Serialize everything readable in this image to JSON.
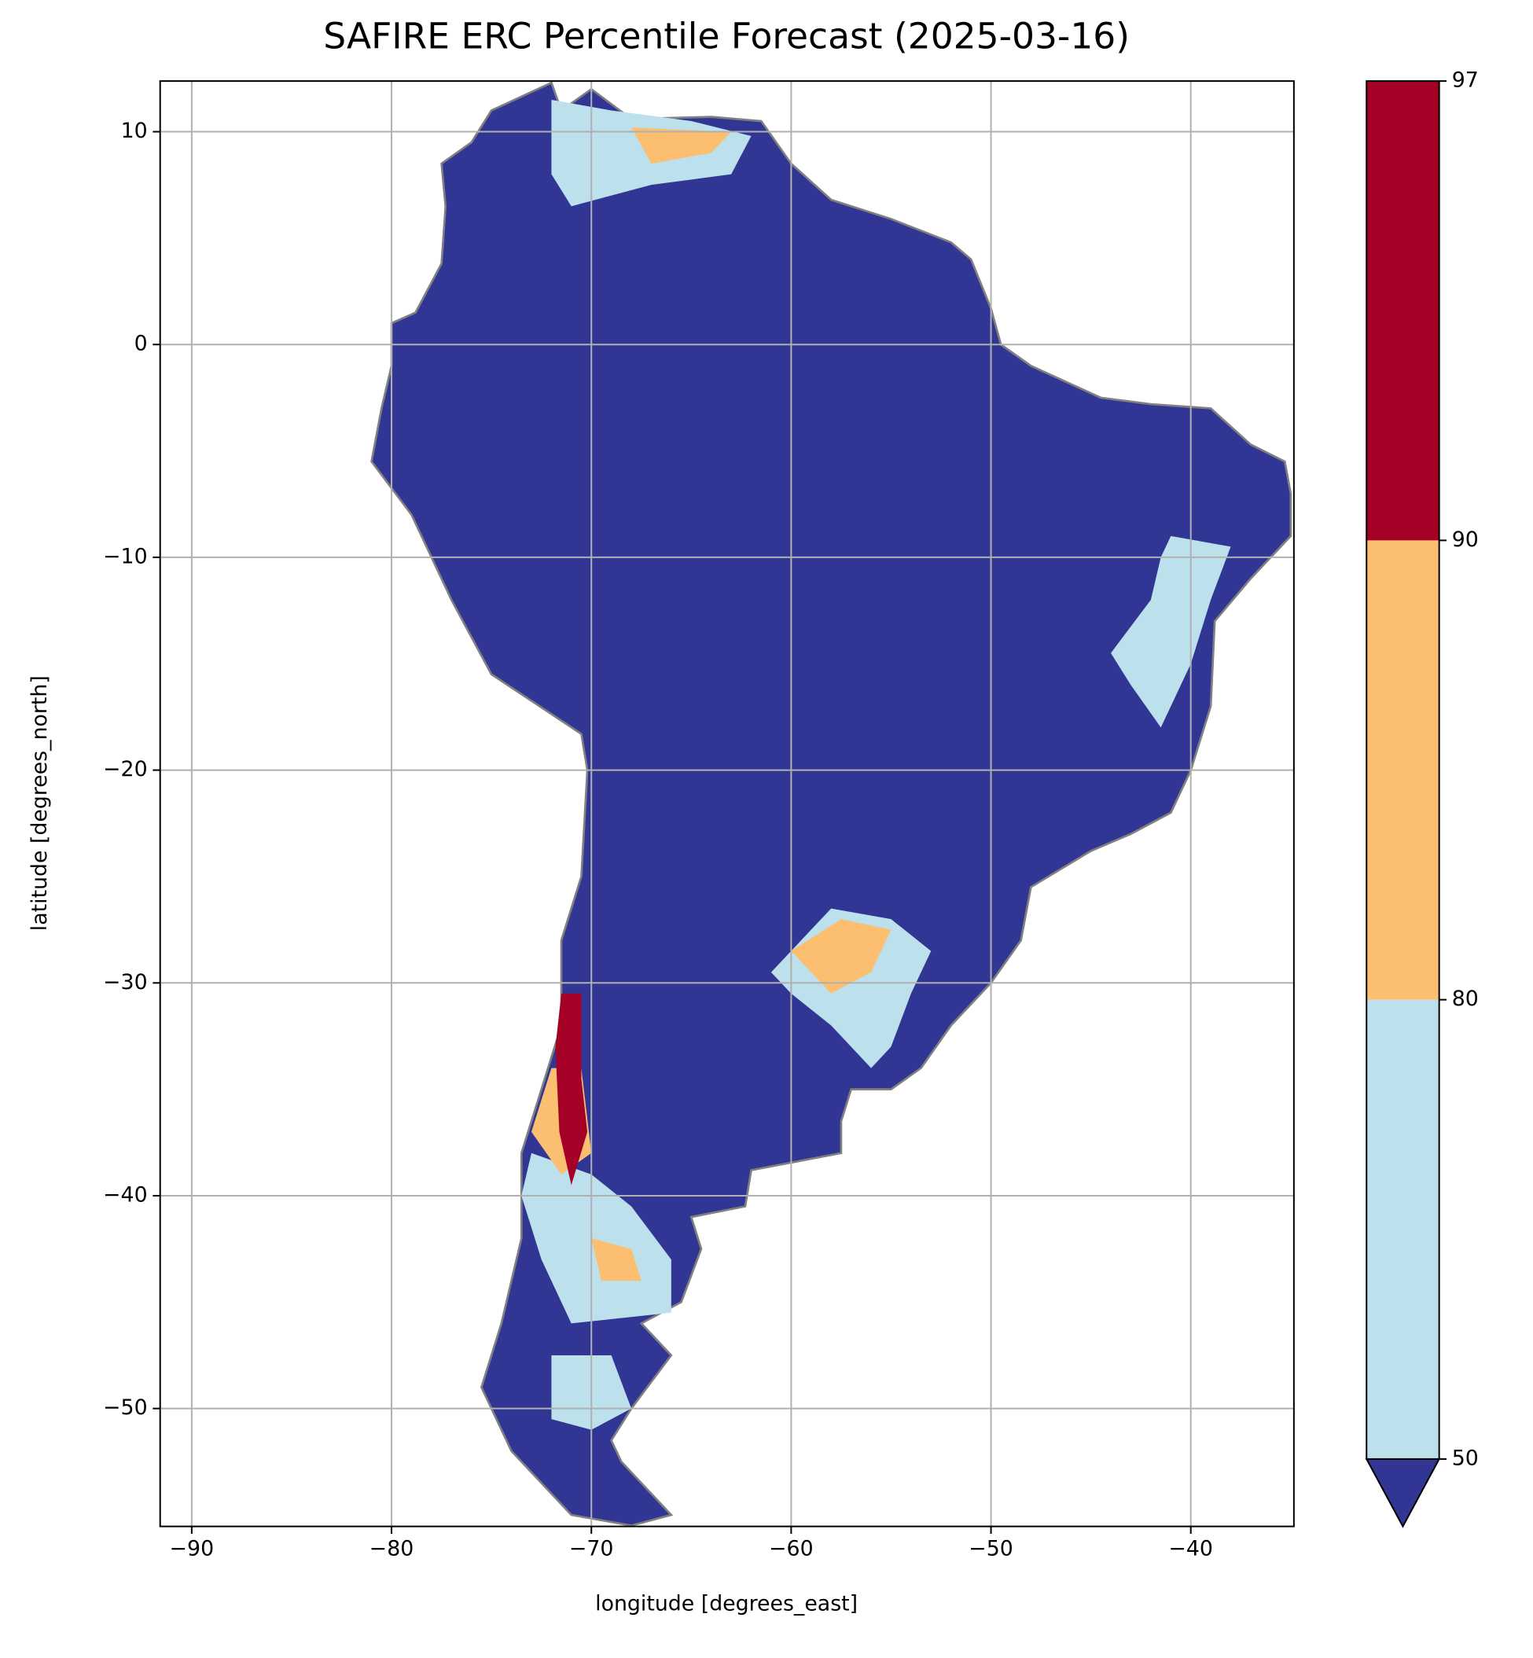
{
  "chart_data": {
    "type": "map",
    "title": "SAFIRE ERC Percentile Forecast (2025-03-16)",
    "x_label": "longitude [degrees_east]",
    "y_label": "latitude [degrees_north]",
    "xlim": [
      -91.58,
      -34.84
    ],
    "ylim": [
      -55.54,
      12.38
    ],
    "xticks": [
      -90,
      -80,
      -70,
      -60,
      -50,
      -40
    ],
    "yticks": [
      -50,
      -40,
      -30,
      -20,
      -10,
      0,
      10
    ],
    "grid": true,
    "colorbar": {
      "boundaries": [
        50,
        80,
        90,
        97
      ],
      "colors": [
        "#bce1ec",
        "#fcbf71",
        "#a50026"
      ],
      "under_color": "#313695"
    },
    "regions": [
      {
        "color": "#313695",
        "lon": [
          -77.5,
          -76,
          -75,
          -72,
          -71.5,
          -70,
          -68,
          -64,
          -61.5,
          -60,
          -58,
          -55,
          -52,
          -51,
          -50,
          -49.5,
          -48,
          -44.5,
          -42,
          -39,
          -37,
          -35.3,
          -35,
          -35,
          -37,
          -38.8,
          -39,
          -40,
          -41,
          -43,
          -45,
          -48,
          -48.5,
          -50,
          -52,
          -53.5,
          -55,
          -57,
          -57.5,
          -57.5,
          -62,
          -62.3,
          -65,
          -64.5,
          -65.5,
          -67.5,
          -66,
          -68,
          -69,
          -68.5,
          -66,
          -68,
          -71,
          -74,
          -75.5,
          -74.5,
          -73.5,
          -73.5,
          -72.5,
          -71.5,
          -71.5,
          -70.5,
          -70.2,
          -70.5,
          -75,
          -77,
          -79,
          -81,
          -80.5,
          -80,
          -80,
          -78.8,
          -77.5,
          -77.3
        ],
        "lat": [
          8.5,
          9.5,
          11,
          12.3,
          11,
          12,
          10.6,
          10.7,
          10.5,
          8.5,
          6.8,
          5.9,
          4.8,
          4,
          1.7,
          0,
          -1,
          -2.5,
          -2.8,
          -3,
          -4.7,
          -5.5,
          -7,
          -9,
          -11,
          -13,
          -17,
          -20,
          -22,
          -23,
          -23.8,
          -25.5,
          -28,
          -30,
          -32,
          -34,
          -35,
          -35,
          -36.5,
          -38,
          -38.8,
          -40.5,
          -41,
          -42.5,
          -45,
          -46,
          -47.5,
          -50,
          -51.5,
          -52.5,
          -55,
          -55.5,
          -55,
          -52,
          -49,
          -46,
          -42,
          -38,
          -35,
          -32,
          -28,
          -25,
          -20,
          -18.3,
          -15.5,
          -12,
          -8,
          -5.5,
          -3,
          -1,
          1,
          1.5,
          3.8,
          6.5
        ]
      },
      {
        "color": "#bce1ec",
        "lon": [
          -41,
          -38,
          -39,
          -40,
          -41.5,
          -43,
          -44,
          -42,
          -41.5
        ],
        "lat": [
          -9,
          -9.5,
          -12,
          -15,
          -18,
          -16,
          -14.5,
          -12,
          -10
        ]
      },
      {
        "color": "#bce1ec",
        "lon": [
          -61,
          -58,
          -55,
          -53,
          -54,
          -55,
          -56,
          -58,
          -60
        ],
        "lat": [
          -29.5,
          -26.5,
          -27,
          -28.5,
          -30.5,
          -33,
          -34,
          -32,
          -30.5
        ]
      },
      {
        "color": "#fcbf71",
        "lon": [
          -60,
          -57.5,
          -55,
          -56,
          -58
        ],
        "lat": [
          -28.5,
          -27,
          -27.5,
          -29.5,
          -30.5
        ]
      },
      {
        "color": "#bce1ec",
        "lon": [
          -73,
          -70,
          -68,
          -66,
          -66,
          -71,
          -72.5,
          -73.5
        ],
        "lat": [
          -38,
          -39,
          -40.5,
          -43,
          -45.5,
          -46,
          -43,
          -40
        ]
      },
      {
        "color": "#fcbf71",
        "lon": [
          -70,
          -68,
          -67.5,
          -69.5
        ],
        "lat": [
          -42,
          -42.5,
          -44,
          -44
        ]
      },
      {
        "color": "#bce1ec",
        "lon": [
          -72,
          -69,
          -68,
          -70,
          -72
        ],
        "lat": [
          -47.5,
          -47.5,
          -50,
          -51,
          -50.5
        ]
      },
      {
        "color": "#bce1ec",
        "lon": [
          -72,
          -69,
          -65,
          -62,
          -63,
          -67,
          -71,
          -72
        ],
        "lat": [
          11.5,
          11,
          10.5,
          9.8,
          8,
          7.5,
          6.5,
          8
        ]
      },
      {
        "color": "#fcbf71",
        "lon": [
          -68,
          -63,
          -64,
          -67
        ],
        "lat": [
          10.2,
          10,
          9,
          8.5
        ]
      },
      {
        "color": "#fcbf71",
        "lon": [
          -72,
          -70.5,
          -70,
          -71.5,
          -73
        ],
        "lat": [
          -34,
          -34,
          -38,
          -39,
          -37
        ]
      },
      {
        "color": "#a50026",
        "lon": [
          -71.5,
          -70.5,
          -70.5,
          -70.2,
          -71,
          -71.6,
          -71.8
        ],
        "lat": [
          -30.5,
          -30.5,
          -34.5,
          -37,
          -39.5,
          -37,
          -33
        ]
      }
    ]
  }
}
